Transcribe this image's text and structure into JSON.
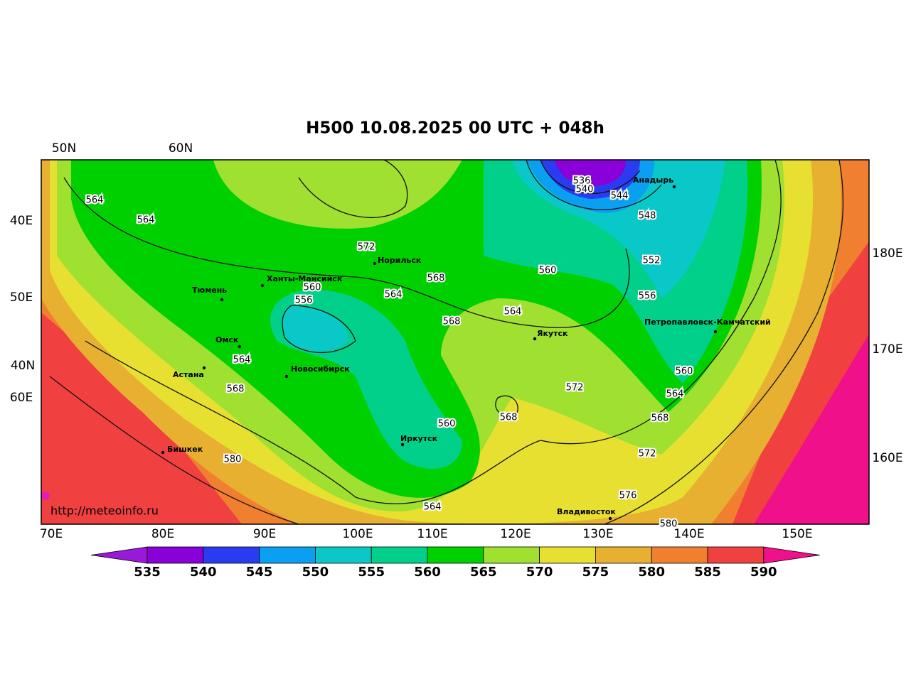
{
  "title": "H500  10.08.2025 00 UTC + 048h",
  "top_labels": [
    "50N",
    "60N"
  ],
  "left_labels": [
    "40E",
    "50E",
    "40N",
    "60E"
  ],
  "right_labels": [
    "180E",
    "170E",
    "160E"
  ],
  "bottom_labels": [
    "70E",
    "80E",
    "90E",
    "100E",
    "110E",
    "120E",
    "130E",
    "140E",
    "150E"
  ],
  "cities": [
    "Норильск",
    "Ханты-Мансийск",
    "Тюмень",
    "Омск",
    "Астана",
    "Новосибирск",
    "Иркутск",
    "Якутск",
    "Анадырь",
    "Петропавловск-Камчатский",
    "Бишкек",
    "Владивосток"
  ],
  "contour_labels": [
    564,
    564,
    572,
    568,
    560,
    556,
    564,
    568,
    564,
    560,
    536,
    540,
    544,
    548,
    552,
    556,
    560,
    564,
    568,
    572,
    568,
    560,
    572,
    576,
    580,
    564,
    580,
    568,
    564
  ],
  "colorbar": [
    535,
    540,
    545,
    550,
    555,
    560,
    565,
    570,
    575,
    580,
    585,
    590
  ],
  "url": "http://meteoinfo.ru"
}
